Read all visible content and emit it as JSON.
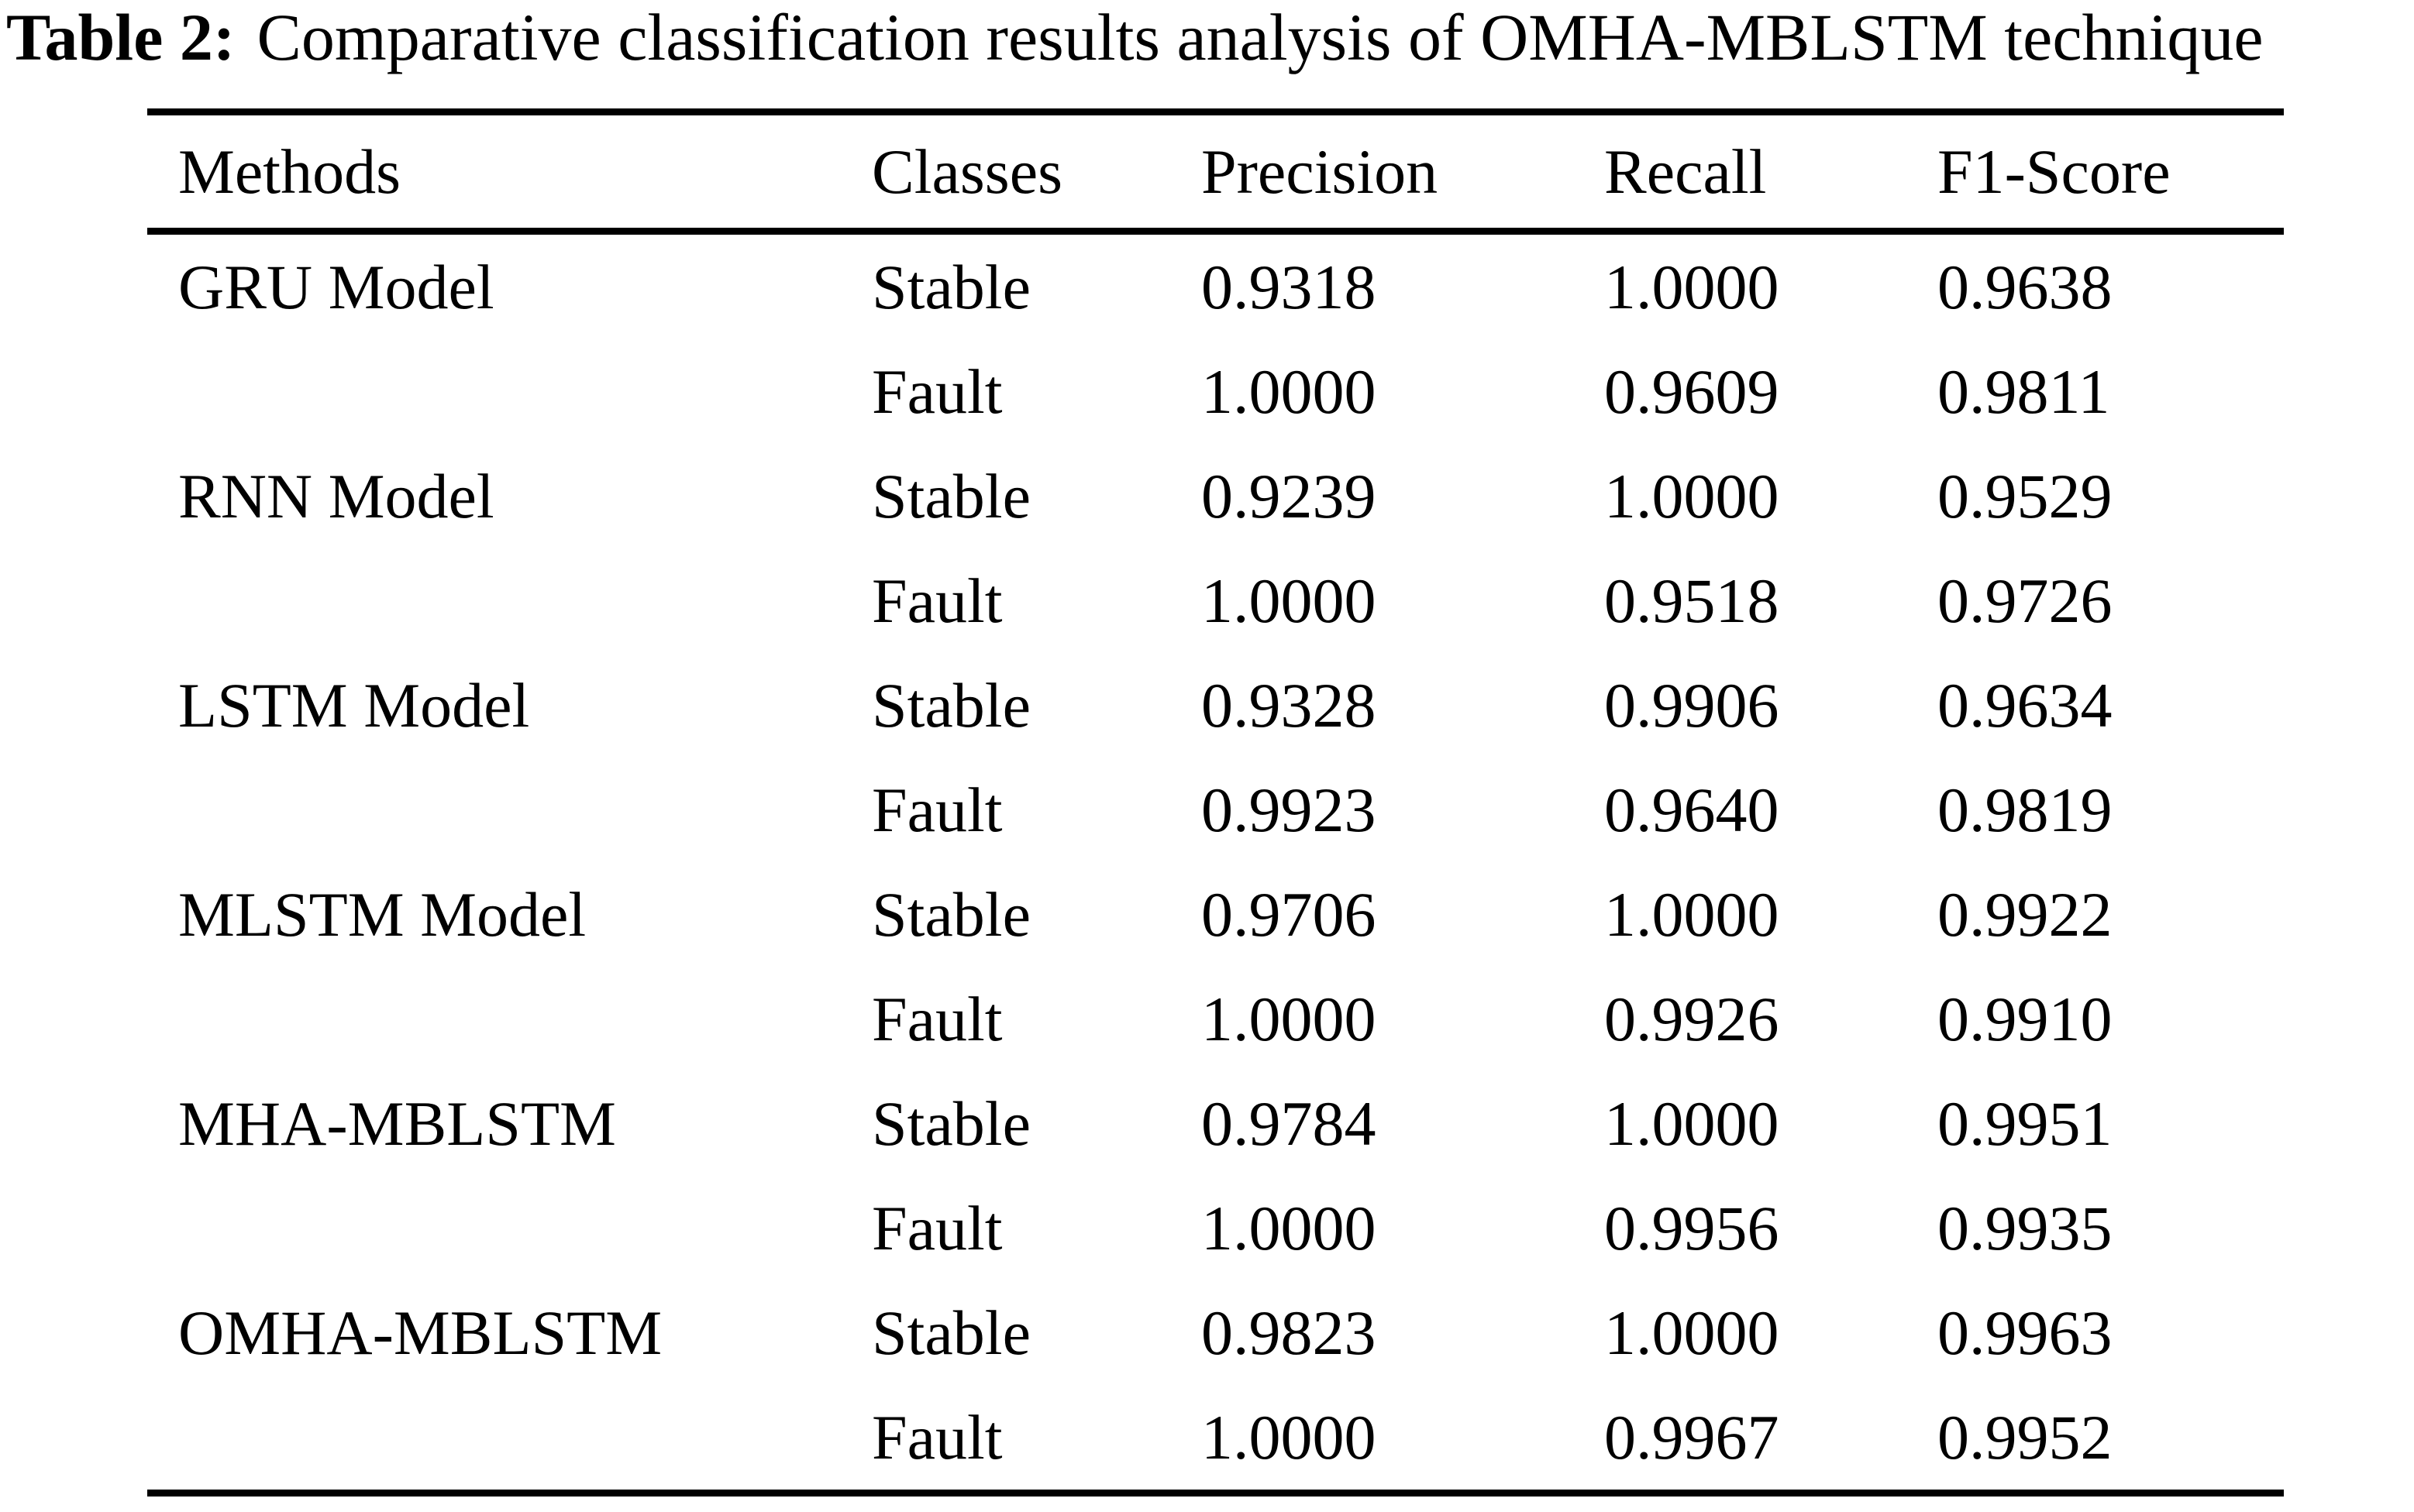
{
  "caption": {
    "label": "Table 2:",
    "text": "Comparative classification results analysis of OMHA-MBLSTM technique"
  },
  "colors": {
    "text": "#000000",
    "background": "#ffffff",
    "rule": "#000000"
  },
  "table": {
    "headers": [
      "Methods",
      "Classes",
      "Precision",
      "Recall",
      "F1-Score"
    ],
    "rows": [
      {
        "method": "GRU Model",
        "class": "Stable",
        "precision": "0.9318",
        "recall": "1.0000",
        "f1": "0.9638"
      },
      {
        "method": "",
        "class": "Fault",
        "precision": "1.0000",
        "recall": "0.9609",
        "f1": "0.9811"
      },
      {
        "method": "RNN Model",
        "class": "Stable",
        "precision": "0.9239",
        "recall": "1.0000",
        "f1": "0.9529"
      },
      {
        "method": "",
        "class": "Fault",
        "precision": "1.0000",
        "recall": "0.9518",
        "f1": "0.9726"
      },
      {
        "method": "LSTM Model",
        "class": "Stable",
        "precision": "0.9328",
        "recall": "0.9906",
        "f1": "0.9634"
      },
      {
        "method": "",
        "class": "Fault",
        "precision": "0.9923",
        "recall": "0.9640",
        "f1": "0.9819"
      },
      {
        "method": "MLSTM Model",
        "class": "Stable",
        "precision": "0.9706",
        "recall": "1.0000",
        "f1": "0.9922"
      },
      {
        "method": "",
        "class": "Fault",
        "precision": "1.0000",
        "recall": "0.9926",
        "f1": "0.9910"
      },
      {
        "method": "MHA-MBLSTM",
        "class": "Stable",
        "precision": "0.9784",
        "recall": "1.0000",
        "f1": "0.9951"
      },
      {
        "method": "",
        "class": "Fault",
        "precision": "1.0000",
        "recall": "0.9956",
        "f1": "0.9935"
      },
      {
        "method": "OMHA-MBLSTM",
        "class": "Stable",
        "precision": "0.9823",
        "recall": "1.0000",
        "f1": "0.9963"
      },
      {
        "method": "",
        "class": "Fault",
        "precision": "1.0000",
        "recall": "0.9967",
        "f1": "0.9952"
      }
    ]
  }
}
